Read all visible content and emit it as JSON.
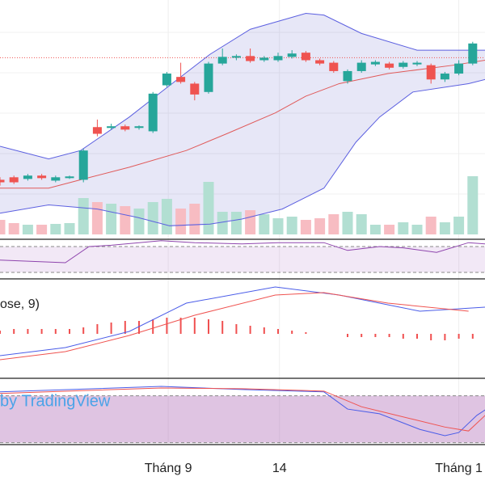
{
  "chart_data": [
    {
      "type": "candlestick",
      "x": [
        0,
        1,
        2,
        3,
        4,
        5,
        6,
        7,
        8,
        9,
        10,
        11,
        12,
        13,
        14,
        15,
        16,
        17,
        18,
        19,
        20,
        21,
        22,
        23,
        24,
        25,
        26,
        27,
        28,
        29,
        30,
        31,
        32,
        33,
        34
      ],
      "open": [
        85,
        88,
        86,
        90,
        84,
        87,
        85,
        148,
        147,
        149,
        147,
        143,
        198,
        208,
        200,
        190,
        224,
        231,
        233,
        228,
        228,
        232,
        237,
        228,
        225,
        203,
        215,
        223,
        224,
        220,
        223,
        222,
        205,
        212,
        224
      ],
      "high": [
        88,
        90,
        92,
        92,
        90,
        90,
        122,
        157,
        152,
        151,
        150,
        190,
        214,
        225,
        202,
        226,
        242,
        235,
        242,
        233,
        237,
        240,
        239,
        230,
        227,
        217,
        228,
        228,
        226,
        227,
        227,
        224,
        214,
        228,
        250
      ],
      "low": [
        78,
        80,
        84,
        85,
        82,
        86,
        82,
        137,
        145,
        143,
        145,
        141,
        196,
        200,
        180,
        188,
        222,
        228,
        225,
        226,
        226,
        230,
        226,
        222,
        213,
        200,
        213,
        221,
        217,
        218,
        221,
        200,
        202,
        210,
        222
      ],
      "close": [
        82,
        82,
        90,
        87,
        88,
        89,
        120,
        140,
        149,
        145,
        149,
        188,
        212,
        202,
        187,
        224,
        232,
        233,
        227,
        231,
        233,
        236,
        228,
        224,
        215,
        215,
        225,
        226,
        219,
        225,
        225,
        205,
        212,
        224,
        248
      ],
      "volume": [
        18,
        14,
        12,
        12,
        13,
        14,
        45,
        40,
        38,
        35,
        32,
        40,
        44,
        32,
        38,
        65,
        28,
        28,
        30,
        25,
        20,
        22,
        18,
        20,
        25,
        28,
        25,
        12,
        12,
        15,
        12,
        22,
        15,
        22,
        72
      ],
      "up_color": "#26a69a",
      "down_color": "#ef5350",
      "volume_up_color": "#b2dfd2",
      "volume_down_color": "#f7bcc2",
      "ylim": [
        10,
        300
      ],
      "volume_ylim": [
        0,
        290
      ],
      "price_line": 231,
      "bands": [
        {
          "color": "#5b5fe0",
          "x": [
            0,
            3.5,
            5.8,
            9.3,
            11.6,
            15.1,
            18,
            22,
            23.3,
            26,
            30,
            34.9
          ],
          "values": [
            125,
            110,
            120,
            160,
            190,
            235,
            265,
            284,
            282,
            260,
            240,
            240
          ]
        },
        {
          "color": "#e05a5a",
          "x": [
            0,
            3.5,
            5.8,
            9.3,
            13.4,
            16.3,
            19.8,
            22,
            24.4,
            27.9,
            32.6,
            34.9
          ],
          "values": [
            75,
            75,
            85,
            100,
            120,
            140,
            165,
            185,
            200,
            212,
            222,
            228
          ]
        },
        {
          "color": "#5b5fe0",
          "x": [
            0,
            3.5,
            7,
            9.9,
            12.2,
            15.1,
            17.4,
            20.3,
            23.3,
            25.6,
            27.3,
            29.7,
            33.7,
            34.9
          ],
          "values": [
            45,
            55,
            50,
            40,
            30,
            32,
            38,
            50,
            75,
            130,
            160,
            190,
            200,
            205
          ]
        }
      ]
    },
    {
      "type": "line",
      "ylim": [
        20,
        80
      ],
      "levels": [
        30,
        70
      ],
      "series": [
        {
          "color": "#8e44ad",
          "x": [
            0,
            4.7,
            6.4,
            8,
            11.6,
            14,
            17.4,
            20,
            23.3,
            25,
            27.3,
            29,
            31.4,
            33.7,
            34.9
          ],
          "values": [
            49,
            45,
            70,
            72,
            79,
            76,
            74,
            76,
            76,
            64,
            70,
            68,
            61,
            76,
            74
          ]
        }
      ]
    },
    {
      "type": "macd",
      "label": "ose, 9)",
      "ylim": [
        -55,
        68
      ],
      "histogram": [
        4,
        6,
        6,
        6,
        6,
        6,
        8,
        12,
        14,
        16,
        16,
        18,
        20,
        20,
        20,
        18,
        16,
        12,
        10,
        8,
        6,
        4,
        2,
        0,
        0,
        -4,
        -4,
        -4,
        -4,
        -6,
        -6,
        -8,
        -8,
        -6,
        -6
      ],
      "histogram_color": "#f05050",
      "series": [
        {
          "color": "#4a5ce8",
          "x": [
            0,
            4.7,
            9.3,
            13.4,
            19.8,
            24.4,
            30.2,
            34.9
          ],
          "values": [
            -27,
            -17,
            3,
            38,
            58,
            48,
            28,
            33
          ]
        },
        {
          "color": "#ef5350",
          "x": [
            0,
            4.7,
            9.3,
            14,
            19.8,
            23.3,
            27.9,
            33.7
          ],
          "values": [
            -32,
            -22,
            -2,
            23,
            48,
            51,
            38,
            28
          ]
        }
      ]
    },
    {
      "type": "line",
      "ylim": [
        0,
        100
      ],
      "levels": [
        20,
        80
      ],
      "watermark": "by TradingView",
      "series": [
        {
          "color": "#4a5ce8",
          "x": [
            0,
            11.6,
            17.4,
            23.3,
            25,
            27.3,
            30.2,
            32,
            33,
            34.3,
            34.9
          ],
          "values": [
            85,
            92,
            88,
            85,
            63,
            57,
            37,
            29,
            33,
            55,
            62
          ]
        },
        {
          "color": "#ef5350",
          "x": [
            0,
            11.6,
            17.4,
            23.3,
            26,
            29.7,
            32,
            33.7,
            34.9
          ],
          "values": [
            83,
            90,
            89,
            86,
            66,
            50,
            40,
            35,
            55
          ]
        }
      ],
      "xticks": [
        {
          "value": 12.1,
          "label": "Tháng 9"
        },
        {
          "value": 20.1,
          "label": "14"
        },
        {
          "value": 33,
          "label": "Tháng 1"
        }
      ]
    }
  ]
}
